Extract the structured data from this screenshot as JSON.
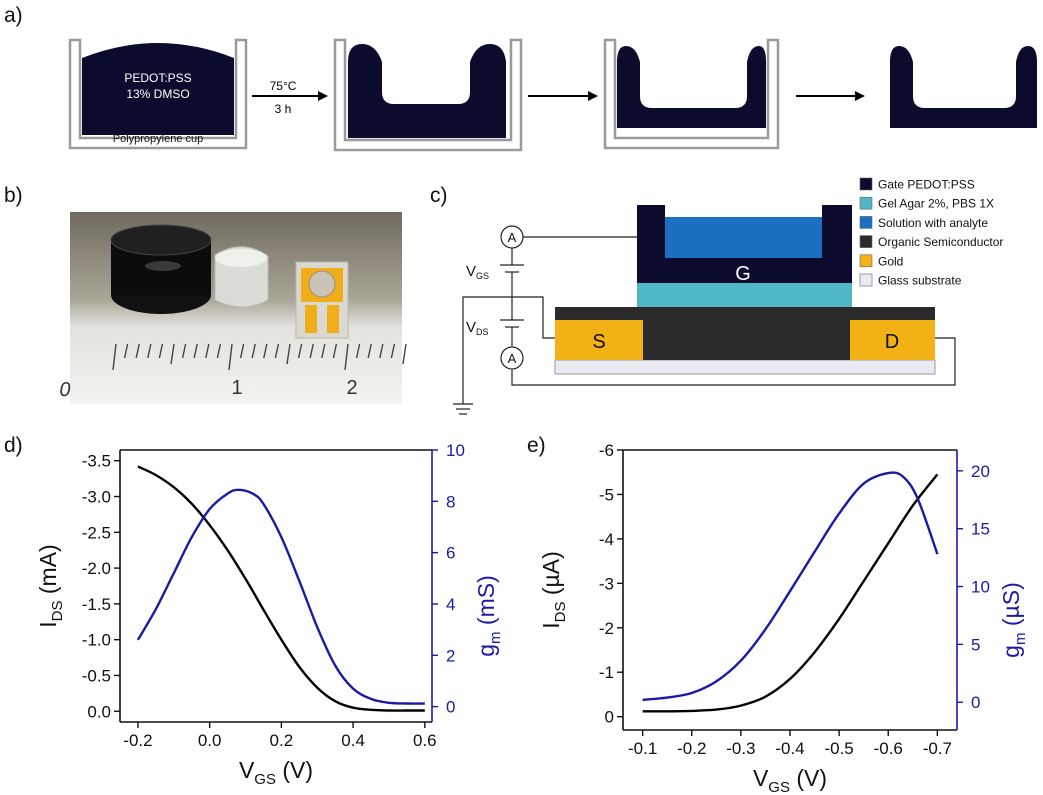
{
  "panels": {
    "a": "a)",
    "b": "b)",
    "c": "c)",
    "d": "d)",
    "e": "e)"
  },
  "panel_a": {
    "cup_label": "Polypropylene cup",
    "material_line1": "PEDOT:PSS",
    "material_line2": "13% DMSO",
    "condition_temp": "75°C",
    "condition_time": "3 h"
  },
  "panel_b": {
    "ruler_labels": [
      "0",
      "1",
      "2"
    ]
  },
  "panel_c": {
    "gate_label": "G",
    "source_label": "S",
    "drain_label": "D",
    "ammeter_label": "A",
    "vgs_main": "V",
    "vgs_sub": "GS",
    "vds_main": "V",
    "vds_sub": "DS",
    "legend": [
      {
        "label": "Gate PEDOT:PSS",
        "color": "#0b0b2e"
      },
      {
        "label": "Gel Agar 2%, PBS 1X",
        "color": "#4fb8c4"
      },
      {
        "label": "Solution with analyte",
        "color": "#1b6fc0"
      },
      {
        "label": "Organic Semiconductor",
        "color": "#2a2a2a"
      },
      {
        "label": "Gold",
        "color": "#f2b215"
      },
      {
        "label": "Glass substrate",
        "color": "#eaeaf2"
      }
    ]
  },
  "chart_data": [
    {
      "panel": "d",
      "type": "line",
      "xlabel_main": "V",
      "xlabel_sub": "GS",
      "xlabel_unit": " (V)",
      "ylabel_main": "I",
      "ylabel_sub": "DS",
      "ylabel_unit": " (mA)",
      "y2label_main": "g",
      "y2label_sub": "m",
      "y2label_unit": " (mS)",
      "xlim": [
        -0.25,
        0.62
      ],
      "ylim": [
        0.15,
        -3.65
      ],
      "y2lim": [
        -0.6,
        10
      ],
      "xticks": [
        "-0.2",
        "0.0",
        "0.2",
        "0.4",
        "0.6"
      ],
      "xtick_values": [
        -0.2,
        0.0,
        0.2,
        0.4,
        0.6
      ],
      "yticks": [
        "-3.5",
        "-3.0",
        "-2.5",
        "-2.0",
        "-1.5",
        "-1.0",
        "-0.5",
        "0.0"
      ],
      "ytick_values": [
        -3.5,
        -3.0,
        -2.5,
        -2.0,
        -1.5,
        -1.0,
        -0.5,
        0.0
      ],
      "y2ticks": [
        "0",
        "2",
        "4",
        "6",
        "8",
        "10"
      ],
      "y2tick_values": [
        0,
        2,
        4,
        6,
        8,
        10
      ],
      "series": [
        {
          "axis": "left",
          "color": "#000000",
          "x": [
            -0.2,
            -0.15,
            -0.1,
            -0.05,
            0.0,
            0.05,
            0.1,
            0.15,
            0.2,
            0.25,
            0.3,
            0.35,
            0.4,
            0.45,
            0.5,
            0.55,
            0.6
          ],
          "y": [
            -3.42,
            -3.3,
            -3.13,
            -2.9,
            -2.6,
            -2.25,
            -1.85,
            -1.42,
            -1.0,
            -0.62,
            -0.33,
            -0.14,
            -0.05,
            -0.02,
            -0.01,
            -0.01,
            -0.01
          ]
        },
        {
          "axis": "right",
          "color": "#1a1aa6",
          "x": [
            -0.2,
            -0.15,
            -0.1,
            -0.05,
            0.0,
            0.05,
            0.08,
            0.12,
            0.15,
            0.2,
            0.25,
            0.3,
            0.35,
            0.4,
            0.45,
            0.5,
            0.55,
            0.6
          ],
          "y": [
            2.6,
            3.8,
            5.2,
            6.6,
            7.7,
            8.3,
            8.45,
            8.3,
            7.9,
            6.6,
            4.9,
            3.1,
            1.6,
            0.7,
            0.3,
            0.15,
            0.12,
            0.12
          ]
        }
      ]
    },
    {
      "panel": "e",
      "type": "line",
      "xlabel_main": "V",
      "xlabel_sub": "GS",
      "xlabel_unit": " (V)",
      "ylabel_main": "I",
      "ylabel_sub": "DS",
      "ylabel_unit": " (µA)",
      "y2label_main": "g",
      "y2label_sub": "m",
      "y2label_unit": " (µS)",
      "xlim": [
        -0.06,
        -0.74
      ],
      "ylim": [
        0.3,
        -6.0
      ],
      "y2lim": [
        -2.4,
        21.8
      ],
      "xticks": [
        "-0.1",
        "-0.2",
        "-0.3",
        "-0.4",
        "-0.5",
        "-0.6",
        "-0.7"
      ],
      "xtick_values": [
        -0.1,
        -0.2,
        -0.3,
        -0.4,
        -0.5,
        -0.6,
        -0.7
      ],
      "yticks": [
        "-6",
        "-5",
        "-4",
        "-3",
        "-2",
        "-1",
        "0"
      ],
      "ytick_values": [
        -6,
        -5,
        -4,
        -3,
        -2,
        -1,
        0
      ],
      "y2ticks": [
        "0",
        "5",
        "10",
        "15",
        "20"
      ],
      "y2tick_values": [
        0,
        5,
        10,
        15,
        20
      ],
      "series": [
        {
          "axis": "left",
          "color": "#000000",
          "x": [
            -0.1,
            -0.15,
            -0.2,
            -0.25,
            -0.3,
            -0.35,
            -0.4,
            -0.45,
            -0.5,
            -0.55,
            -0.6,
            -0.65,
            -0.7
          ],
          "y": [
            -0.12,
            -0.12,
            -0.13,
            -0.16,
            -0.25,
            -0.45,
            -0.85,
            -1.45,
            -2.2,
            -3.05,
            -3.9,
            -4.75,
            -5.45
          ]
        },
        {
          "axis": "right",
          "color": "#1a1aa6",
          "x": [
            -0.1,
            -0.15,
            -0.2,
            -0.25,
            -0.3,
            -0.35,
            -0.4,
            -0.45,
            -0.5,
            -0.55,
            -0.6,
            -0.63,
            -0.66,
            -0.7
          ],
          "y": [
            0.2,
            0.4,
            0.8,
            1.8,
            3.6,
            6.3,
            9.6,
            13.0,
            16.3,
            18.9,
            19.8,
            19.5,
            17.6,
            12.8
          ]
        }
      ]
    }
  ]
}
